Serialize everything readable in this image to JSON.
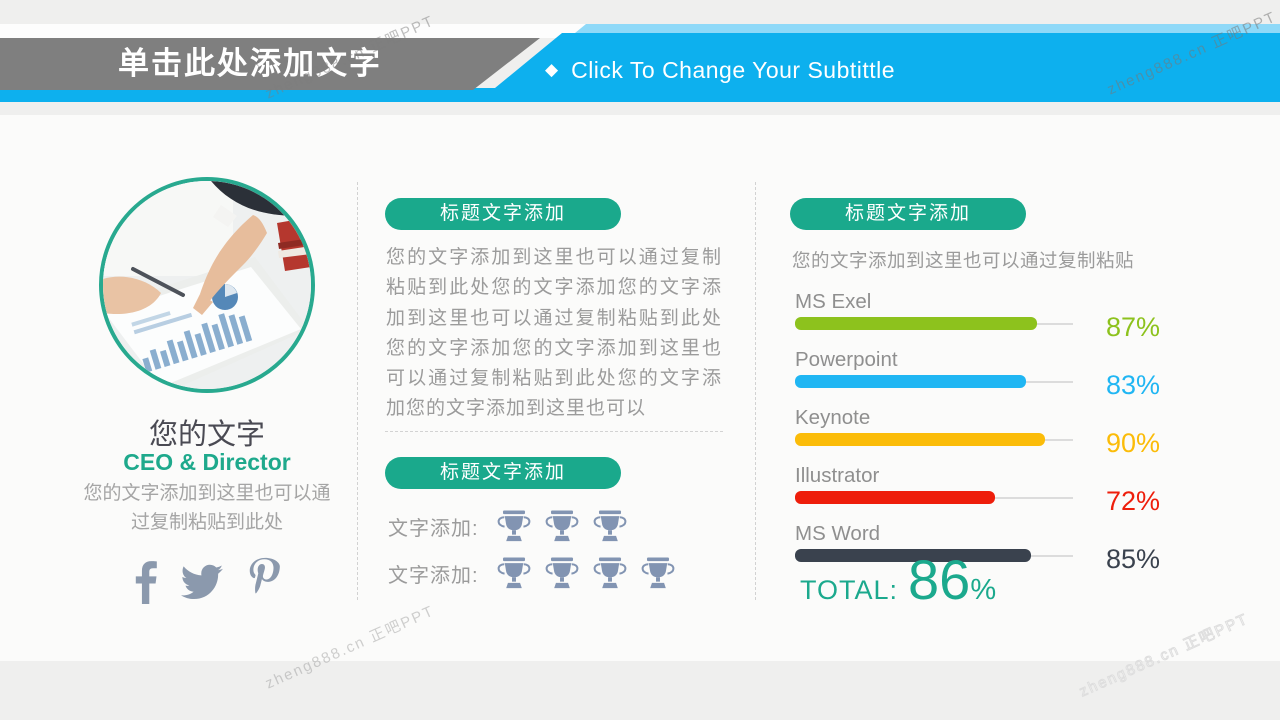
{
  "watermark": {
    "text": "zheng888.cn 正吧PPT"
  },
  "header": {
    "title": "单击此处添加文字",
    "subtitle_bullet": "◆",
    "subtitle": "Click To Change Your Subtittle"
  },
  "profile": {
    "name": "您的文字",
    "role": "CEO & Director",
    "description": "您的文字添加到这里也可以通过复制粘贴到此处",
    "social_icons": [
      "facebook",
      "twitter",
      "pinterest"
    ]
  },
  "sections": {
    "text_block": {
      "title": "标题文字添加",
      "body": "您的文字添加到这里也可以通过复制粘贴到此处您的文字添加您的文字添加到这里也可以通过复制粘贴到此处您的文字添加您的文字添加到这里也可以通过复制粘贴到此处您的文字添加您的文字添加到这里也可以"
    },
    "awards_block": {
      "title": "标题文字添加",
      "rows": [
        {
          "label": "文字添加:",
          "trophies": 3
        },
        {
          "label": "文字添加:",
          "trophies": 4
        }
      ]
    },
    "skills_block": {
      "title": "标题文字添加",
      "intro": "您的文字添加到这里也可以通过复制粘贴"
    }
  },
  "chart_data": {
    "type": "bar",
    "categories": [
      "MS Exel",
      "Powerpoint",
      "Keynote",
      "Illustrator",
      "MS Word"
    ],
    "values": [
      87,
      83,
      90,
      72,
      85
    ],
    "unit": "%",
    "bar_colors": [
      "#8dc21d",
      "#20b6f3",
      "#fbbc09",
      "#ee1e0b",
      "#3a424e"
    ],
    "value_colors": [
      "#8dc21d",
      "#20b6f3",
      "#fbbc09",
      "#ee1e0b",
      "#3a424e"
    ],
    "track_color": "#dcdcdc",
    "xlim": [
      0,
      100
    ],
    "total_label": "TOTAL:",
    "total_value": "86",
    "total_unit": "%"
  },
  "colors": {
    "accent_teal": "#1aa98c",
    "cyan": "#0db0ee",
    "light_blue": "#8fd9f8",
    "banner_gray": "#7f7f7f",
    "icon_slate": "#8b99ad",
    "trophy_slate": "#8294b2"
  }
}
